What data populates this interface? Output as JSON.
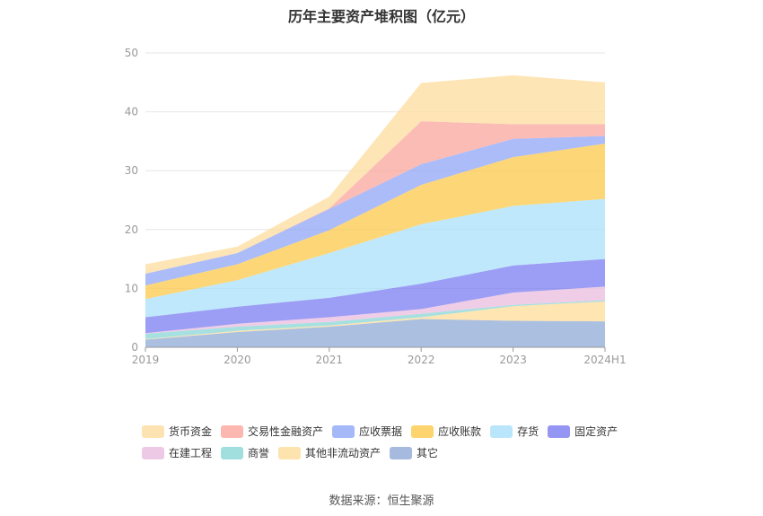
{
  "chart_data": {
    "type": "area",
    "title": "历年主要资产堆积图（亿元）",
    "categories": [
      "2019",
      "2020",
      "2021",
      "2022",
      "2023",
      "2024H1"
    ],
    "ylim": [
      0,
      50
    ],
    "yticks": [
      0,
      10,
      20,
      30,
      40,
      50
    ],
    "grid": true,
    "stacked": true,
    "legend_position": "bottom",
    "series": [
      {
        "name": "其它",
        "color": "#8fa9d6",
        "values": [
          1.3,
          2.6,
          3.5,
          4.8,
          4.5,
          4.4
        ]
      },
      {
        "name": "其他非流动资产",
        "color": "#fddc98",
        "values": [
          0.1,
          0.2,
          0.2,
          0.3,
          2.5,
          3.4
        ]
      },
      {
        "name": "商誉",
        "color": "#8ad6d6",
        "values": [
          0.9,
          0.7,
          0.6,
          0.6,
          0.2,
          0.2
        ]
      },
      {
        "name": "在建工程",
        "color": "#eabcdf",
        "values": [
          0.1,
          0.5,
          0.8,
          0.8,
          2.1,
          2.3
        ]
      },
      {
        "name": "固定资产",
        "color": "#7b7cf0",
        "values": [
          2.7,
          2.9,
          3.3,
          4.3,
          4.6,
          4.7
        ]
      },
      {
        "name": "存货",
        "color": "#a9e0fb",
        "values": [
          3.1,
          4.5,
          7.6,
          10.1,
          10.1,
          10.2
        ]
      },
      {
        "name": "应收账款",
        "color": "#fcc94a",
        "values": [
          2.3,
          2.7,
          3.9,
          6.7,
          8.3,
          9.4
        ]
      },
      {
        "name": "应收票据",
        "color": "#8fa6f6",
        "values": [
          2.0,
          1.9,
          3.6,
          3.5,
          3.1,
          1.3
        ]
      },
      {
        "name": "交易性金融资产",
        "color": "#fba59e",
        "values": [
          0,
          0,
          0.1,
          7.3,
          2.5,
          2.0
        ]
      },
      {
        "name": "货币资金",
        "color": "#fddc9e",
        "values": [
          1.6,
          1.1,
          2.0,
          6.5,
          8.3,
          7.1
        ]
      }
    ]
  },
  "legend_rows": [
    [
      "货币资金",
      "交易性金融资产",
      "应收票据",
      "应收账款",
      "存货",
      "固定资产"
    ],
    [
      "在建工程",
      "商誉",
      "其他非流动资产",
      "其它"
    ]
  ],
  "source": "数据来源：恒生聚源"
}
